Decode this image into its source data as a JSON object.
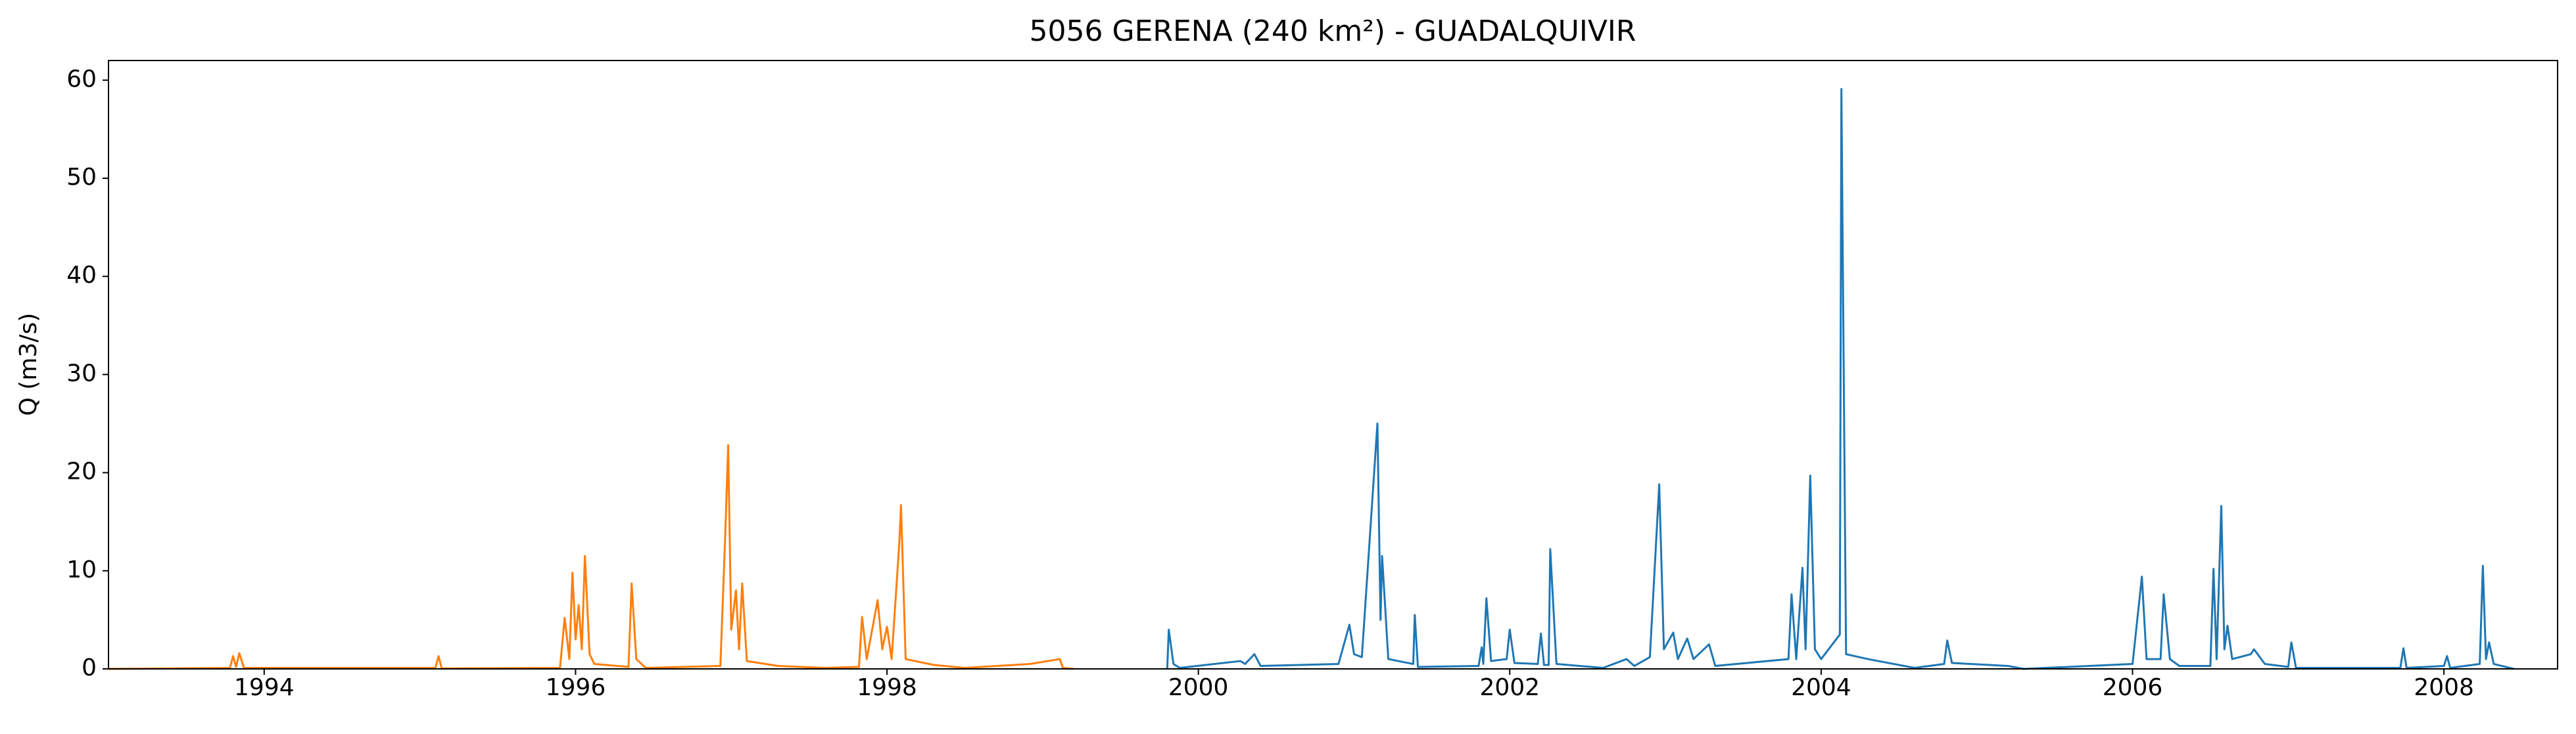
{
  "chart_data": {
    "type": "line",
    "title": "5056 GERENA (240 km²) - GUADALQUIVIR",
    "y_label": "Q (m3/s)",
    "xlim": [
      1993.0,
      2008.73
    ],
    "xticks": [
      1994,
      1996,
      1998,
      2000,
      2002,
      2004,
      2006,
      2008
    ],
    "ylim": [
      0,
      62
    ],
    "yticks": [
      0,
      10,
      20,
      30,
      40,
      50,
      60
    ],
    "grid": false,
    "series": [
      {
        "color": "#ff7f0e",
        "x": [
          1993.0,
          1993.78,
          1993.8,
          1993.82,
          1993.84,
          1993.87,
          1995.1,
          1995.12,
          1995.14,
          1995.9,
          1995.93,
          1995.96,
          1995.98,
          1996.0,
          1996.02,
          1996.04,
          1996.06,
          1996.09,
          1996.12,
          1996.34,
          1996.36,
          1996.39,
          1996.45,
          1996.93,
          1996.96,
          1996.98,
          1997.0,
          1997.03,
          1997.05,
          1997.07,
          1997.1,
          1997.3,
          1997.6,
          1997.82,
          1997.84,
          1997.87,
          1997.94,
          1997.97,
          1998.0,
          1998.03,
          1998.08,
          1998.09,
          1998.12,
          1998.3,
          1998.5,
          1998.92,
          1999.11,
          1999.13,
          1999.2
        ],
        "values": [
          0,
          0.1,
          1.3,
          0.2,
          1.6,
          0.1,
          0.1,
          1.3,
          0.05,
          0.1,
          5.2,
          1,
          9.8,
          3,
          6.5,
          2,
          11.5,
          1.5,
          0.5,
          0.2,
          8.7,
          1,
          0.1,
          0.3,
          13,
          22.8,
          4,
          8,
          2,
          8.7,
          0.8,
          0.3,
          0.1,
          0.2,
          5.3,
          1,
          7,
          2,
          4.3,
          1,
          13,
          16.7,
          1,
          0.4,
          0.1,
          0.5,
          1,
          0.1,
          0
        ]
      },
      {
        "color": "#1f77b4",
        "x": [
          1999.8,
          1999.81,
          1999.84,
          1999.88,
          2000.27,
          2000.3,
          2000.36,
          2000.4,
          2000.9,
          2000.97,
          2001.0,
          2001.05,
          2001.15,
          2001.17,
          2001.18,
          2001.22,
          2001.38,
          2001.39,
          2001.41,
          2001.8,
          2001.82,
          2001.83,
          2001.85,
          2001.88,
          2001.98,
          2002.0,
          2002.03,
          2002.18,
          2002.2,
          2002.22,
          2002.25,
          2002.26,
          2002.3,
          2002.6,
          2002.75,
          2002.8,
          2002.9,
          2002.96,
          2002.99,
          2003.05,
          2003.08,
          2003.14,
          2003.18,
          2003.28,
          2003.32,
          2003.79,
          2003.81,
          2003.84,
          2003.88,
          2003.9,
          2003.93,
          2003.96,
          2004.0,
          2004.12,
          2004.13,
          2004.16,
          2004.3,
          2004.6,
          2004.79,
          2004.81,
          2004.84,
          2005.2,
          2005.3,
          2006.0,
          2006.06,
          2006.09,
          2006.18,
          2006.2,
          2006.24,
          2006.3,
          2006.5,
          2006.52,
          2006.54,
          2006.57,
          2006.59,
          2006.61,
          2006.64,
          2006.76,
          2006.78,
          2006.85,
          2007.0,
          2007.02,
          2007.05,
          2007.72,
          2007.74,
          2007.76,
          2008.0,
          2008.02,
          2008.04,
          2008.23,
          2008.25,
          2008.27,
          2008.29,
          2008.32,
          2008.45
        ],
        "values": [
          0,
          4,
          0.5,
          0.1,
          0.8,
          0.5,
          1.5,
          0.3,
          0.5,
          4.5,
          1.5,
          1.2,
          25,
          5,
          11.5,
          1,
          0.5,
          5.5,
          0.2,
          0.3,
          2.2,
          0.5,
          7.2,
          0.8,
          1,
          4,
          0.6,
          0.5,
          3.6,
          0.4,
          0.4,
          12.2,
          0.5,
          0.1,
          1,
          0.3,
          1.2,
          18.8,
          2,
          3.7,
          1,
          3.1,
          1,
          2.5,
          0.3,
          1,
          7.6,
          1,
          10.3,
          2,
          19.7,
          2,
          1,
          3.5,
          59.1,
          1.5,
          1,
          0.1,
          0.5,
          2.9,
          0.6,
          0.3,
          0,
          0.5,
          9.4,
          1,
          1,
          7.6,
          1,
          0.3,
          0.3,
          10.2,
          1,
          16.6,
          2,
          4.4,
          1,
          1.5,
          2,
          0.5,
          0.2,
          2.7,
          0.1,
          0.1,
          2.1,
          0.1,
          0.3,
          1.3,
          0.1,
          0.5,
          10.5,
          1,
          2.7,
          0.5,
          0
        ]
      }
    ]
  }
}
